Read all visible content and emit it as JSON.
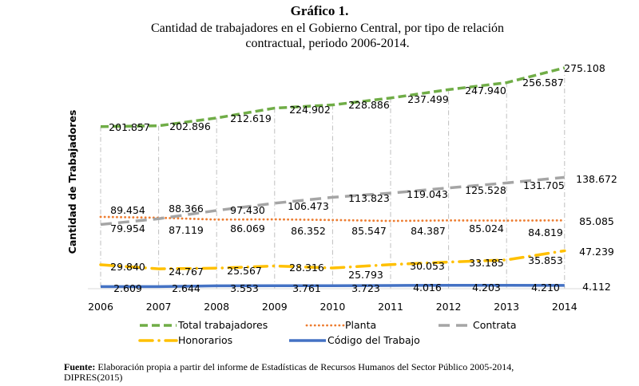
{
  "chart_data": {
    "type": "line",
    "title": "Gráfico 1.",
    "subtitle": "Cantidad de trabajadores en el Gobierno Central, por tipo de relación contractual, periodo 2006-2014.",
    "xlabel": "",
    "ylabel": "Cantidad de Trabajadores",
    "x": [
      "2006",
      "2007",
      "2008",
      "2009",
      "2010",
      "2011",
      "2012",
      "2013",
      "2014"
    ],
    "ylim": [
      0,
      290000
    ],
    "grid": "vertical dashed",
    "legend_position": "bottom",
    "series": [
      {
        "name": "Total trabajadores",
        "color": "#70AD47",
        "style": "dash",
        "values": [
          201857,
          202896,
          212619,
          224902,
          228886,
          237499,
          247940,
          256587,
          275108
        ],
        "labels": [
          "201.857",
          "202.896",
          "212.619",
          "224.902",
          "228.886",
          "237.499",
          "247.940",
          "256.587",
          "275.108"
        ]
      },
      {
        "name": "Planta",
        "color": "#ED7D31",
        "style": "dot",
        "values": [
          89454,
          88366,
          86069,
          86352,
          85547,
          84387,
          85024,
          84819,
          85085
        ],
        "labels": [
          "89.454",
          "88.366",
          "86.069",
          "86.352",
          "85.547",
          "84.387",
          "85.024",
          "84.819",
          "85.085"
        ]
      },
      {
        "name": "Contrata",
        "color": "#A5A5A5",
        "style": "longdash",
        "values": [
          79954,
          87119,
          97430,
          106473,
          113823,
          119043,
          125528,
          131705,
          138672
        ],
        "labels": [
          "79.954",
          "87.119",
          "97.430",
          "106.473",
          "113.823",
          "119.043",
          "125.528",
          "131.705",
          "138.672"
        ]
      },
      {
        "name": "Honorarios",
        "color": "#FFC000",
        "style": "dashdot",
        "values": [
          29840,
          24767,
          25567,
          28316,
          25793,
          30053,
          33185,
          35853,
          47239
        ],
        "labels": [
          "29.840",
          "24.767",
          "25.567",
          "28.316",
          "25.793",
          "30.053",
          "33.185",
          "35.853",
          "47.239"
        ]
      },
      {
        "name": "Código del Trabajo",
        "color": "#4472C4",
        "style": "solid",
        "values": [
          2609,
          2644,
          3553,
          3761,
          3723,
          4016,
          4203,
          4210,
          4112
        ],
        "labels": [
          "2.609",
          "2.644",
          "3.553",
          "3.761",
          "3.723",
          "4.016",
          "4.203",
          "4.210",
          "4.112"
        ]
      }
    ],
    "source_label": "Fuente:",
    "source_text_line1": "Elaboración propia a partir del informe de Estadísticas de Recursos Humanos del Sector Público 2005-2014,",
    "source_text_line2": "DIPRES(2015)"
  }
}
